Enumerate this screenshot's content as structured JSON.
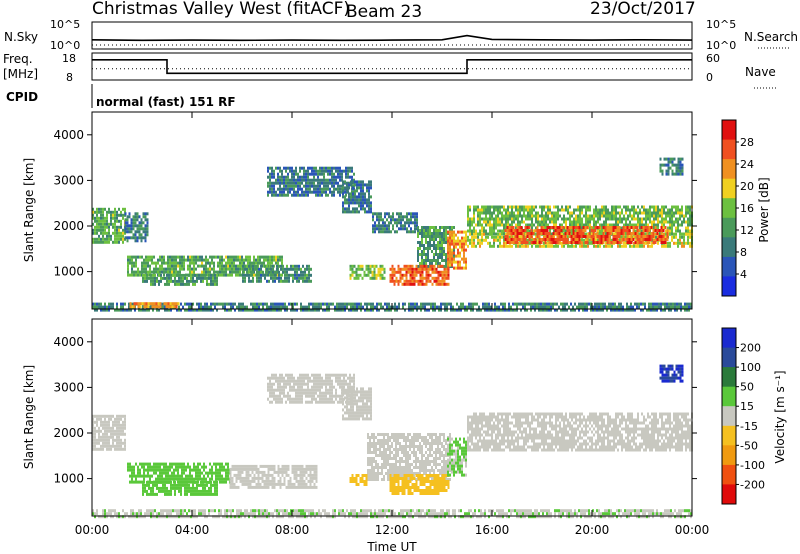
{
  "header": {
    "station": "Christmas Valley West (fitACF)",
    "beam": "Beam 23",
    "date": "23/Oct/2017"
  },
  "strip_panels": {
    "nsky": {
      "label": "N.Sky",
      "ticks": [
        "10^5",
        "10^0"
      ],
      "right_ticks": [
        "10^5",
        "10^0"
      ],
      "right_label": "N.Search"
    },
    "freq": {
      "label": "Freq.",
      "unit": "[MHz]",
      "ticks": [
        "18",
        "8"
      ],
      "right_ticks": [
        "60",
        "0"
      ],
      "right_label": "Nave"
    },
    "cpid": {
      "label": "CPID",
      "mode": "normal (fast) 151 RF"
    }
  },
  "colors": {
    "power": [
      "#1a2de0",
      "#2a55b8",
      "#3a7a7a",
      "#4a9a5a",
      "#6cc040",
      "#f0d020",
      "#f09020",
      "#f05020",
      "#e01010"
    ],
    "velocity": [
      "#e00a0a",
      "#f05010",
      "#f09a10",
      "#f5c020",
      "#c8c8c0",
      "#5ac83a",
      "#2a7a3a",
      "#2a4a9a",
      "#1a2ad0"
    ]
  },
  "chart_data": [
    {
      "type": "line",
      "title": "N.Sky / N.Search",
      "x": [
        "00:00",
        "02:00",
        "04:00",
        "06:00",
        "08:00",
        "10:00",
        "12:00",
        "14:00",
        "15:00",
        "16:00",
        "18:00",
        "20:00",
        "22:00",
        "24:00"
      ],
      "series": [
        {
          "name": "N.Sky",
          "values": [
            50,
            40,
            45,
            40,
            45,
            40,
            45,
            50,
            300,
            60,
            50,
            45,
            50,
            45
          ]
        },
        {
          "name": "N.Search",
          "values": [
            5,
            5,
            5,
            5,
            5,
            5,
            5,
            5,
            5,
            5,
            5,
            5,
            5,
            5
          ]
        }
      ],
      "ylim": [
        1,
        100000
      ],
      "yscale": "log"
    },
    {
      "type": "line",
      "title": "Freq. / Nave",
      "segments": [
        {
          "start": "00:00",
          "end": "03:00",
          "freq_mhz": 15.5
        },
        {
          "start": "03:00",
          "end": "15:00",
          "freq_mhz": 10.5
        },
        {
          "start": "15:00",
          "end": "24:00",
          "freq_mhz": 15.5
        }
      ],
      "nave": 25,
      "ylim": [
        8,
        18
      ],
      "y2lim": [
        0,
        60
      ]
    },
    {
      "type": "heatmap",
      "quantity": "power",
      "xlabel": "",
      "ylabel": "Slant Range [km]",
      "x_ticks": [
        "00:00",
        "04:00",
        "08:00",
        "12:00",
        "16:00",
        "20:00",
        "00:00"
      ],
      "xlim_hours": [
        0,
        24
      ],
      "y_ticks": [
        1000,
        2000,
        3000,
        4000
      ],
      "ylim": [
        180,
        4500
      ],
      "colorbar": {
        "label": "Power [dB]",
        "ticks": [
          4,
          8,
          12,
          16,
          20,
          24,
          28
        ],
        "range": [
          0,
          30
        ]
      },
      "regions": [
        {
          "t0": 0.0,
          "t1": 1.3,
          "r0": 1650,
          "r1": 2400,
          "value": 13
        },
        {
          "t0": 1.3,
          "t1": 2.2,
          "r0": 1700,
          "r1": 2300,
          "value": 9
        },
        {
          "t0": 1.4,
          "t1": 7.6,
          "r0": 950,
          "r1": 1350,
          "value": 13
        },
        {
          "t0": 2.0,
          "t1": 5.0,
          "r0": 700,
          "r1": 950,
          "value": 11
        },
        {
          "t0": 6.0,
          "t1": 8.8,
          "r0": 800,
          "r1": 1150,
          "value": 10
        },
        {
          "t0": 7.0,
          "t1": 10.5,
          "r0": 2700,
          "r1": 3300,
          "value": 8
        },
        {
          "t0": 10.0,
          "t1": 11.2,
          "r0": 2300,
          "r1": 3000,
          "value": 8
        },
        {
          "t0": 11.2,
          "t1": 13.0,
          "r0": 1900,
          "r1": 2300,
          "value": 9
        },
        {
          "t0": 13.0,
          "t1": 14.5,
          "r0": 1100,
          "r1": 2000,
          "value": 11
        },
        {
          "t0": 10.3,
          "t1": 11.7,
          "r0": 850,
          "r1": 1150,
          "value": 15
        },
        {
          "t0": 11.9,
          "t1": 14.3,
          "r0": 700,
          "r1": 1150,
          "value": 24
        },
        {
          "t0": 14.2,
          "t1": 15.0,
          "r0": 1050,
          "r1": 1900,
          "value": 22
        },
        {
          "t0": 15.0,
          "t1": 24.0,
          "r0": 1850,
          "r1": 2450,
          "value": 14
        },
        {
          "t0": 15.0,
          "t1": 24.0,
          "r0": 1550,
          "r1": 1850,
          "value": 17
        },
        {
          "t0": 16.5,
          "t1": 23.0,
          "r0": 1650,
          "r1": 2000,
          "value": 25
        },
        {
          "t0": 22.7,
          "t1": 23.6,
          "r0": 3150,
          "r1": 3500,
          "value": 9
        },
        {
          "t0": 0.0,
          "t1": 24.0,
          "r0": 180,
          "r1": 320,
          "value": 9
        },
        {
          "t0": 1.5,
          "t1": 3.5,
          "r0": 200,
          "r1": 330,
          "value": 21
        }
      ]
    },
    {
      "type": "heatmap",
      "quantity": "velocity",
      "xlabel": "Time UT",
      "ylabel": "Slant Range [km]",
      "x_ticks": [
        "00:00",
        "04:00",
        "08:00",
        "12:00",
        "16:00",
        "20:00",
        "00:00"
      ],
      "xlim_hours": [
        0,
        24
      ],
      "y_ticks": [
        1000,
        2000,
        3000,
        4000
      ],
      "ylim": [
        180,
        4500
      ],
      "colorbar": {
        "label": "Velocity [m s⁻¹]",
        "ticks": [
          200,
          100,
          50,
          15,
          -15,
          -50,
          -100,
          -200
        ]
      },
      "regions": [
        {
          "t0": 0.0,
          "t1": 1.3,
          "r0": 1650,
          "r1": 2400,
          "value": 0
        },
        {
          "t0": 1.4,
          "t1": 5.5,
          "r0": 950,
          "r1": 1350,
          "value": 35
        },
        {
          "t0": 2.0,
          "t1": 5.0,
          "r0": 650,
          "r1": 950,
          "value": 35
        },
        {
          "t0": 5.5,
          "t1": 9.0,
          "r0": 800,
          "r1": 1300,
          "value": 0
        },
        {
          "t0": 7.0,
          "t1": 10.5,
          "r0": 2700,
          "r1": 3300,
          "value": 0
        },
        {
          "t0": 10.0,
          "t1": 11.2,
          "r0": 2300,
          "r1": 3000,
          "value": 0
        },
        {
          "t0": 11.0,
          "t1": 14.3,
          "r0": 1000,
          "r1": 2000,
          "value": 0
        },
        {
          "t0": 10.3,
          "t1": 11.0,
          "r0": 850,
          "r1": 1100,
          "value": -30
        },
        {
          "t0": 11.9,
          "t1": 14.3,
          "r0": 700,
          "r1": 1100,
          "value": -30
        },
        {
          "t0": 14.2,
          "t1": 15.0,
          "r0": 1050,
          "r1": 1900,
          "value": 20
        },
        {
          "t0": 15.0,
          "t1": 24.0,
          "r0": 1600,
          "r1": 2450,
          "value": 0
        },
        {
          "t0": 22.7,
          "t1": 23.6,
          "r0": 3150,
          "r1": 3500,
          "value": 200
        },
        {
          "t0": 0.0,
          "t1": 24.0,
          "r0": 180,
          "r1": 330,
          "value": 10
        }
      ]
    }
  ]
}
